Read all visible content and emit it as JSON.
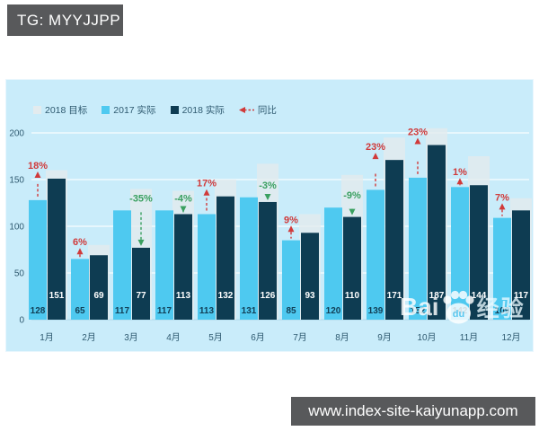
{
  "header": {
    "tag": "TG: MYYJJPP"
  },
  "footer": {
    "url": "www.index-site-kaiyunapp.com"
  },
  "watermark": {
    "brand_prefix": "Bai",
    "brand_mid": "du",
    "brand_suffix": "经验"
  },
  "legend": [
    {
      "label": "2018 目标"
    },
    {
      "label": "2017 实际"
    },
    {
      "label": "2018 实际"
    },
    {
      "label": "同比"
    }
  ],
  "colors": {
    "box_bg": "#58595b",
    "panel_bg": "#c9ecfa",
    "grid": "#ffffff",
    "axis_text": "#2f5a70",
    "value_on_blue": "#113e55",
    "value_on_dark": "#ffffff",
    "up": "#d03a3a",
    "down": "#3aa060"
  },
  "chart_data": {
    "type": "bar",
    "title": "",
    "categories": [
      "1月",
      "2月",
      "3月",
      "4月",
      "5月",
      "6月",
      "7月",
      "8月",
      "9月",
      "10月",
      "11月",
      "12月"
    ],
    "series": [
      {
        "name": "2018 目标",
        "color": "#e3ebee",
        "values": [
          160,
          80,
          140,
          138,
          150,
          167,
          113,
          155,
          195,
          205,
          175,
          130
        ]
      },
      {
        "name": "2017 实际",
        "color": "#4ec9f0",
        "values": [
          128,
          65,
          117,
          117,
          113,
          131,
          85,
          120,
          139,
          152,
          142,
          109
        ]
      },
      {
        "name": "2018 实际",
        "color": "#0e3c52",
        "values": [
          151,
          69,
          77,
          113,
          132,
          126,
          93,
          110,
          171,
          187,
          144,
          117
        ]
      }
    ],
    "yoy": {
      "name": "同比",
      "labels": [
        "18%",
        "6%",
        "-35%",
        "-4%",
        "17%",
        "-3%",
        "9%",
        "-9%",
        "23%",
        "23%",
        "1%",
        "7%"
      ],
      "directions": [
        "up",
        "up",
        "down",
        "down",
        "up",
        "down",
        "up",
        "down",
        "up",
        "up",
        "up",
        "up"
      ]
    },
    "ylabel": "",
    "ylim": [
      0,
      200
    ],
    "yticks": [
      0,
      50,
      100,
      150,
      200
    ],
    "grid": true,
    "legend_position": "top-left"
  }
}
